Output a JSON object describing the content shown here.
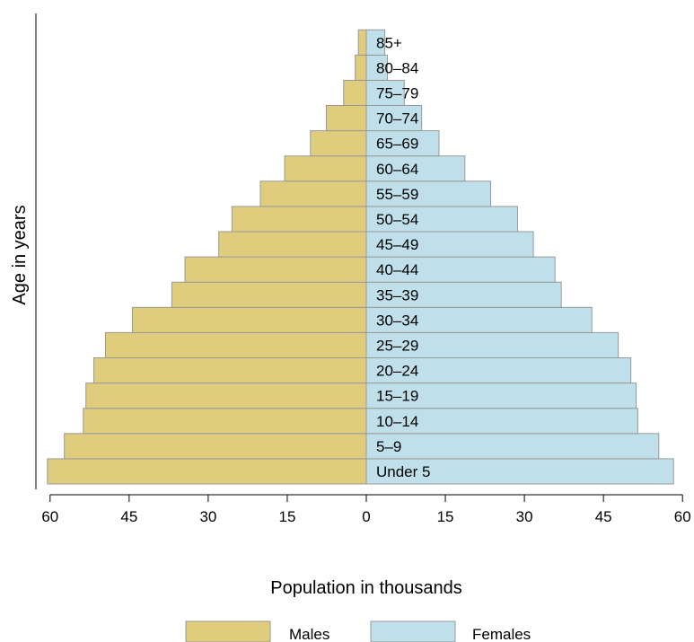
{
  "chart_data": {
    "type": "bar",
    "orientation": "horizontal",
    "subtype": "population-pyramid",
    "categories": [
      "Under 5",
      "5–9",
      "10–14",
      "15–19",
      "20–24",
      "25–29",
      "30–34",
      "35–39",
      "40–44",
      "45–49",
      "50–54",
      "55–59",
      "60–64",
      "65–69",
      "70–74",
      "75–79",
      "80–84",
      "85+"
    ],
    "series": [
      {
        "name": "Males",
        "color": "#dfcc7d",
        "values": [
          60.5,
          57.3,
          53.7,
          53.2,
          51.7,
          49.5,
          44.4,
          36.9,
          34.4,
          28.0,
          25.5,
          20.1,
          15.5,
          10.6,
          7.6,
          4.3,
          2.1,
          1.5
        ]
      },
      {
        "name": "Females",
        "color": "#bfe0ea",
        "values": [
          58.3,
          55.5,
          51.5,
          51.2,
          50.2,
          47.8,
          42.8,
          37.0,
          35.8,
          31.7,
          28.7,
          23.6,
          18.7,
          13.8,
          10.5,
          7.2,
          4.0,
          3.5
        ]
      }
    ],
    "xlabel": "Population in thousands",
    "ylabel": "Age in years",
    "xlim": [
      -60,
      60
    ],
    "xticks": [
      "60",
      "45",
      "30",
      "15",
      "0",
      "15",
      "30",
      "45",
      "60"
    ],
    "legend": {
      "position": "bottom",
      "entries": [
        "Males",
        "Females"
      ]
    },
    "grid": false
  }
}
